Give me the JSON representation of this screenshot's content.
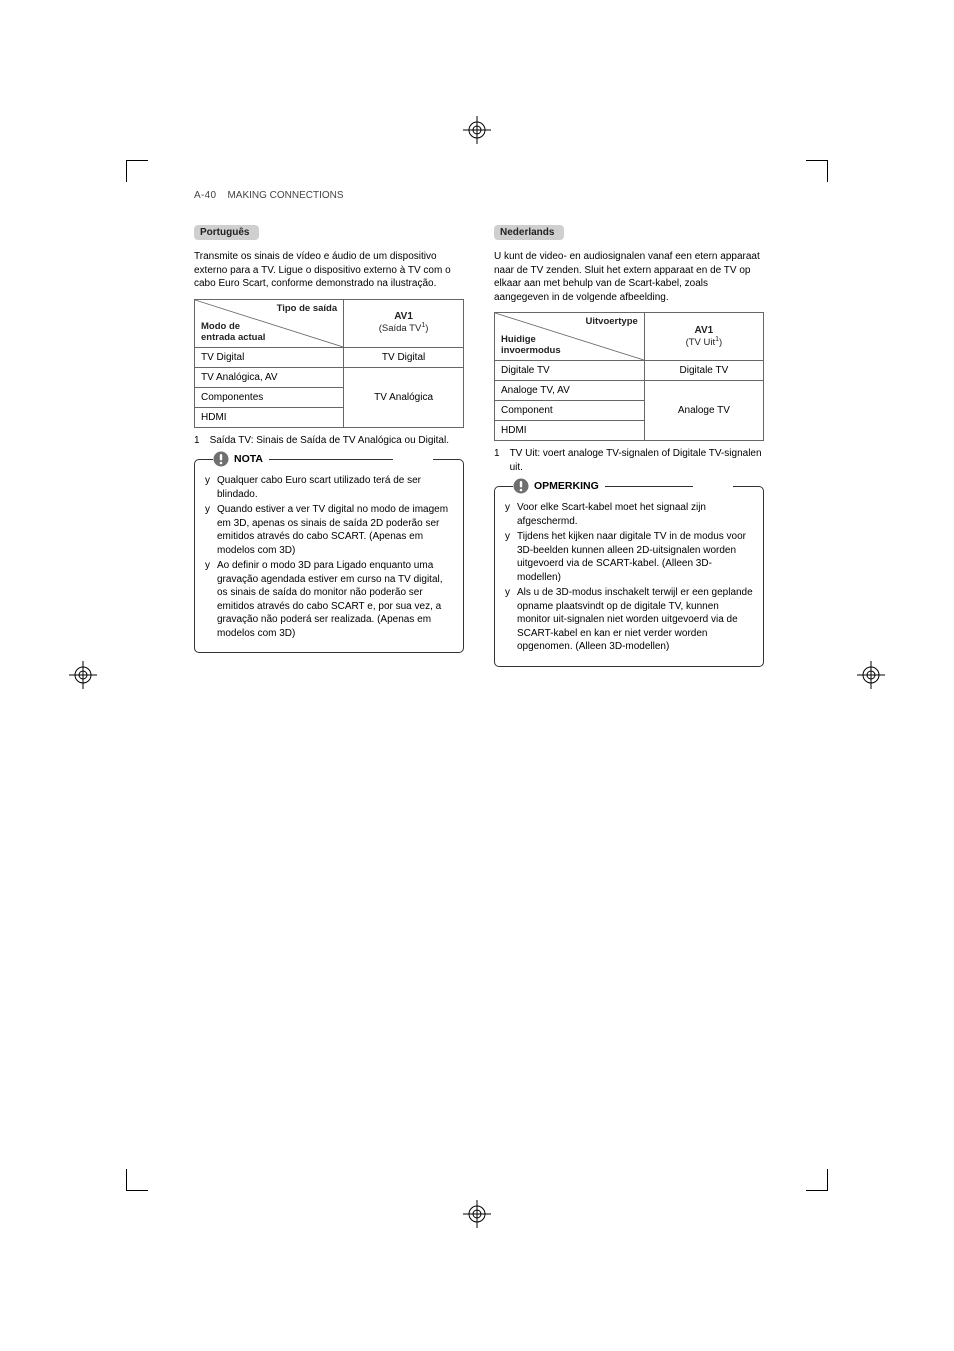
{
  "page_header": {
    "prefix": "A-40",
    "title": "MAKING CONNECTIONS"
  },
  "colors": {
    "pill_bg": "#cfcfcf",
    "border": "#666666",
    "text": "#000000",
    "note_border": "#333333",
    "icon_fill": "#6f6f6f"
  },
  "left": {
    "lang": "Português",
    "intro": "Transmite os sinais de vídeo e áudio de um dispositivo externo para a TV. Ligue o dispositivo externo à TV com o cabo Euro Scart, conforme demonstrado na ilustração.",
    "table": {
      "diag_top": "Tipo de saída",
      "diag_bot": "Modo de\nentrada actual",
      "av_head": "AV1",
      "av_sub_prefix": "(Saída TV",
      "av_sub_sup": "1",
      "av_sub_suffix": ")",
      "rows": [
        {
          "mode": "TV Digital",
          "out": "TV Digital"
        },
        {
          "mode": "TV Analógica, AV"
        },
        {
          "mode": "Componentes"
        },
        {
          "mode": "HDMI"
        }
      ],
      "merged_out": "TV Analógica"
    },
    "footnote_num": "1",
    "footnote": "Saída TV: Sinais de Saída de TV Analógica ou Digital.",
    "note_title": "NOTA",
    "notes": [
      "Qualquer cabo Euro scart utilizado terá de ser blindado.",
      "Quando estiver a ver TV digital no modo de imagem em 3D, apenas os sinais de saída 2D poderão ser emitidos através do cabo SCART. (Apenas em modelos com 3D)",
      "Ao definir o modo 3D para Ligado enquanto uma gravação agendada estiver em curso na TV digital, os sinais de saída do monitor não poderão ser emitidos através do cabo SCART e, por sua vez, a gravação não poderá ser realizada. (Apenas em modelos com 3D)"
    ]
  },
  "right": {
    "lang": "Nederlands",
    "intro": "U kunt de video- en audiosignalen vanaf een etern apparaat naar de TV zenden. Sluit het extern apparaat en de TV op elkaar aan met behulp van de Scart-kabel, zoals aangegeven in de volgende afbeelding.",
    "table": {
      "diag_top": "Uitvoertype",
      "diag_bot": "Huidige\ninvoermodus",
      "av_head": "AV1",
      "av_sub_prefix": "(TV Uit",
      "av_sub_sup": "1",
      "av_sub_suffix": ")",
      "rows": [
        {
          "mode": "Digitale TV",
          "out": "Digitale TV"
        },
        {
          "mode": "Analoge TV, AV"
        },
        {
          "mode": "Component"
        },
        {
          "mode": "HDMI"
        }
      ],
      "merged_out": "Analoge TV"
    },
    "footnote_num": "1",
    "footnote": "TV Uit: voert analoge TV-signalen of Digitale TV-signalen uit.",
    "note_title": "OPMERKING",
    "notes": [
      "Voor elke Scart-kabel moet het signaal zijn afgeschermd.",
      "Tijdens het kijken naar digitale TV in de modus voor 3D-beelden kunnen alleen 2D-uitsignalen worden uitgevoerd via de SCART-kabel. (Alleen 3D-modellen)",
      "Als u de 3D-modus inschakelt terwijl er een geplande opname plaatsvindt op de digitale TV, kunnen monitor uit-signalen niet worden uitgevoerd via de SCART-kabel en kan er niet verder worden opgenomen. (Alleen 3D-modellen)"
    ]
  }
}
